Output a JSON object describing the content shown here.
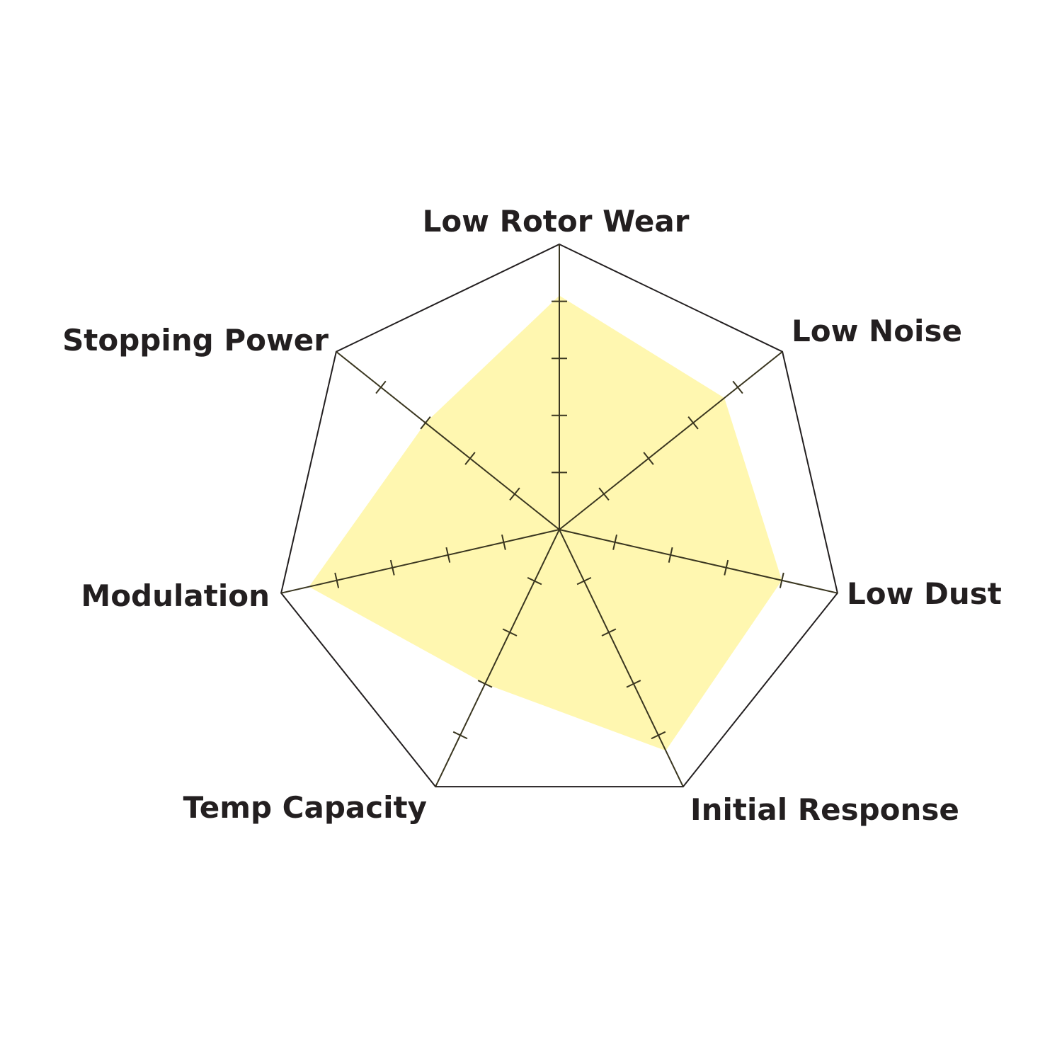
{
  "chart_data": {
    "type": "radar",
    "axes": [
      "Low Rotor Wear",
      "Low Noise",
      "Low Dust",
      "Initial Response",
      "Temp Capacity",
      "Modulation",
      "Stopping Power"
    ],
    "series": [
      {
        "values": [
          4.1,
          3.7,
          4.0,
          4.3,
          3.0,
          4.5,
          3.0
        ]
      }
    ],
    "range": [
      0,
      5
    ],
    "tick_divisions": 5,
    "colors": {
      "fill": "#fff7b0",
      "grid": "#231f20",
      "axis_inside": "#5e5a1e"
    }
  }
}
